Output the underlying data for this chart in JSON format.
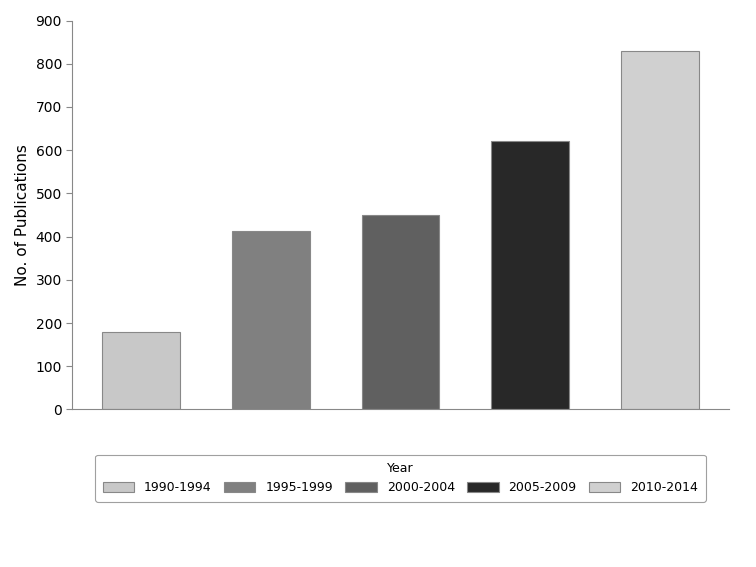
{
  "categories": [
    "1990-1994",
    "1995-1999",
    "2000-2004",
    "2005-2009",
    "2010-2014"
  ],
  "values": [
    180,
    413,
    450,
    622,
    829
  ],
  "bar_colors": [
    "#c8c8c8",
    "#808080",
    "#606060",
    "#282828",
    "#d0d0d0"
  ],
  "ylabel": "No. of Publications",
  "ylim": [
    0,
    900
  ],
  "yticks": [
    0,
    100,
    200,
    300,
    400,
    500,
    600,
    700,
    800,
    900
  ],
  "legend_label": "Year",
  "background_color": "#ffffff",
  "bar_width": 0.6,
  "edge_color": "#888888"
}
